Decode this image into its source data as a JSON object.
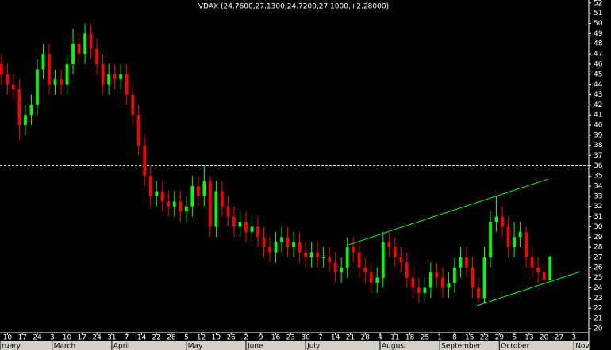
{
  "chart_data": {
    "type": "candlestick",
    "title": "VDAX (24.7600,27.1300,24.7200,27.1000,+2.28000)",
    "up_color": "#00ff00",
    "down_color": "#ff0000",
    "open": [
      46,
      45,
      44,
      43.5,
      40,
      41,
      42,
      45.5,
      47,
      44,
      44.5,
      44,
      46,
      48,
      47,
      49,
      47.5,
      46,
      44,
      45,
      44.5,
      45,
      43,
      41,
      38,
      35,
      33,
      33.5,
      32.5,
      32,
      32.5,
      31.5,
      32,
      34,
      33,
      34.5,
      30,
      33.5,
      32,
      31,
      30,
      30.5,
      29.5,
      30,
      29,
      28,
      27.5,
      28.5,
      29,
      28,
      28.5,
      27.5,
      27,
      27.5,
      27,
      27,
      26.5,
      25.5,
      26,
      28,
      27.5,
      26,
      25.5,
      24.5,
      25,
      28.5,
      28,
      27,
      26.5,
      25,
      24,
      23.5,
      24,
      25.5,
      25,
      24,
      24.5,
      26,
      27,
      26,
      24,
      23,
      27,
      30.5,
      31,
      30,
      28,
      29,
      29.5,
      27,
      26,
      25.5,
      24.76
    ],
    "high": [
      47,
      46,
      45,
      44.5,
      42,
      43,
      46.5,
      48,
      48,
      45.5,
      45.5,
      47,
      49.5,
      49,
      50,
      50,
      48.5,
      47,
      46,
      46,
      46,
      46,
      44,
      42,
      39,
      36,
      34.5,
      34.5,
      33.5,
      33.5,
      33.5,
      33,
      35,
      35,
      36,
      35,
      34.5,
      34.5,
      33,
      32,
      31.5,
      31.5,
      31,
      31,
      30,
      29,
      29.5,
      30,
      30,
      29.5,
      29.5,
      28.5,
      28.5,
      28.5,
      28,
      28,
      27.5,
      27,
      29,
      29,
      28.5,
      27,
      26.5,
      26,
      29.5,
      29.5,
      29,
      28,
      27.5,
      26,
      25,
      25,
      26.5,
      26.5,
      26,
      25.5,
      27,
      28,
      28,
      27,
      25,
      28,
      31.5,
      33,
      32,
      31,
      30.5,
      30.5,
      30,
      28,
      27,
      26.5,
      27.13
    ],
    "low": [
      44,
      43,
      42.5,
      38.5,
      39,
      40,
      41,
      44.5,
      43,
      43,
      43,
      43,
      45,
      46,
      46,
      46.5,
      45,
      43,
      43,
      43.5,
      43.5,
      42,
      40,
      37,
      34,
      32,
      32,
      31.5,
      31,
      31,
      30.5,
      30.5,
      31,
      32,
      32,
      29,
      29,
      31,
      30,
      29,
      29,
      28.5,
      28.5,
      28,
      27,
      26.5,
      26.5,
      27.5,
      27,
      27,
      26.5,
      26,
      26,
      26,
      26,
      25.5,
      24.5,
      24.5,
      25,
      26.5,
      25,
      24.5,
      23.5,
      23.5,
      24,
      27,
      26,
      25.5,
      24,
      23,
      22.5,
      22.5,
      23,
      24,
      23,
      23,
      23.5,
      25,
      25,
      23,
      22.5,
      22.5,
      26,
      29.5,
      29,
      27,
      27,
      28,
      26,
      25,
      24.5,
      24,
      24.72
    ],
    "close": [
      45,
      44,
      43.5,
      40,
      41,
      42,
      45.5,
      47,
      44,
      44.5,
      44,
      46,
      48,
      47,
      49,
      47.5,
      46,
      44,
      45,
      44.5,
      45,
      43,
      41,
      38,
      35,
      33,
      33.5,
      32.5,
      32,
      32.5,
      31.5,
      32,
      34,
      33,
      34.5,
      30,
      33.5,
      32,
      31,
      30,
      30.5,
      29.5,
      30,
      29,
      28,
      27.5,
      28.5,
      29,
      28,
      28.5,
      27.5,
      27,
      27.5,
      27,
      27,
      26.5,
      25.5,
      26,
      28,
      27.5,
      26,
      25.5,
      24.5,
      25,
      28.5,
      28,
      27,
      26.5,
      25,
      24,
      23.5,
      24,
      25.5,
      25,
      24,
      24.5,
      26,
      27,
      26,
      24,
      23,
      27,
      30.5,
      31,
      30,
      28,
      29,
      29.5,
      27,
      26,
      25.5,
      24.8,
      27.1
    ],
    "xlim": [
      -0.25,
      98.5
    ],
    "xticks": [
      {
        "value": 1,
        "label": "10"
      },
      {
        "value": 3.5,
        "label": "17"
      },
      {
        "value": 6,
        "label": "24"
      },
      {
        "value": 8.5,
        "label": "3"
      },
      {
        "value": 11,
        "label": "10"
      },
      {
        "value": 13.5,
        "label": "17"
      },
      {
        "value": 16,
        "label": "24"
      },
      {
        "value": 18.5,
        "label": "31"
      },
      {
        "value": 21,
        "label": "7"
      },
      {
        "value": 23.5,
        "label": "14"
      },
      {
        "value": 26,
        "label": "22"
      },
      {
        "value": 28.5,
        "label": "28"
      },
      {
        "value": 31,
        "label": "5"
      },
      {
        "value": 33.5,
        "label": "12"
      },
      {
        "value": 36,
        "label": "19"
      },
      {
        "value": 38.5,
        "label": "26"
      },
      {
        "value": 41,
        "label": "2"
      },
      {
        "value": 43.5,
        "label": "9"
      },
      {
        "value": 46,
        "label": "16"
      },
      {
        "value": 48.5,
        "label": "23"
      },
      {
        "value": 51,
        "label": "30"
      },
      {
        "value": 53.5,
        "label": "7"
      },
      {
        "value": 56,
        "label": "14"
      },
      {
        "value": 58.5,
        "label": "21"
      },
      {
        "value": 61,
        "label": "28"
      },
      {
        "value": 63.5,
        "label": "4"
      },
      {
        "value": 66,
        "label": "11"
      },
      {
        "value": 68.5,
        "label": "18"
      },
      {
        "value": 71,
        "label": "25"
      },
      {
        "value": 73.5,
        "label": "1"
      },
      {
        "value": 76,
        "label": "8"
      },
      {
        "value": 78.5,
        "label": "15"
      },
      {
        "value": 81,
        "label": "22"
      },
      {
        "value": 83.5,
        "label": "29"
      },
      {
        "value": 86,
        "label": "6"
      },
      {
        "value": 88.5,
        "label": "13"
      },
      {
        "value": 91,
        "label": "20"
      },
      {
        "value": 93.5,
        "label": "27"
      },
      {
        "value": 96,
        "label": "3"
      }
    ],
    "month_labels": [
      {
        "value": -0.25,
        "label": "ruary"
      },
      {
        "value": 8.5,
        "label": "March"
      },
      {
        "value": 18.5,
        "label": "April"
      },
      {
        "value": 31,
        "label": "May"
      },
      {
        "value": 41,
        "label": "June"
      },
      {
        "value": 51,
        "label": "July"
      },
      {
        "value": 63.5,
        "label": "August"
      },
      {
        "value": 73.5,
        "label": "September"
      },
      {
        "value": 83.5,
        "label": "October"
      },
      {
        "value": 96,
        "label": "Nov"
      }
    ],
    "ylim": [
      19.6,
      52.3
    ],
    "yticks": [
      20,
      21,
      22,
      23,
      24,
      25,
      26,
      27,
      28,
      29,
      30,
      31,
      32,
      33,
      34,
      35,
      36,
      37,
      38,
      39,
      40,
      41,
      42,
      43,
      44,
      45,
      46,
      47,
      48,
      49,
      50,
      51,
      52
    ],
    "reference_line": 36,
    "trendline_color": "#00ff00",
    "trendlines": [
      {
        "x": [
          58,
          91.7
        ],
        "y": [
          28.2,
          34.7
        ]
      },
      {
        "x": [
          79.5,
          97.1
        ],
        "y": [
          22.2,
          25.6
        ]
      }
    ]
  }
}
